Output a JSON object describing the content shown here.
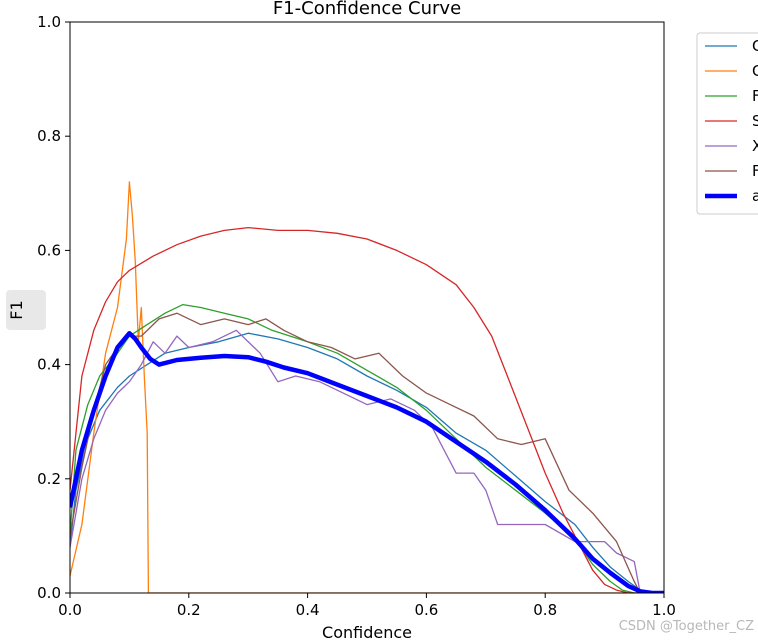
{
  "watermark": "CSDN @Together_CZ",
  "chart_data": {
    "type": "line",
    "title": "F1-Confidence Curve",
    "xlabel": "Confidence",
    "ylabel": "F1",
    "xlim": [
      0,
      1
    ],
    "ylim": [
      0,
      1
    ],
    "xticks": [
      "0.0",
      "0.2",
      "0.4",
      "0.6",
      "0.8",
      "1.0"
    ],
    "yticks": [
      "0.0",
      "0.2",
      "0.4",
      "0.6",
      "0.8",
      "1.0"
    ],
    "grid": false,
    "legend_position": "outside-top-right",
    "series": [
      {
        "name": "C",
        "color": "#1f77b4",
        "width": 1.3,
        "points": [
          [
            0.0,
            0.08
          ],
          [
            0.01,
            0.18
          ],
          [
            0.03,
            0.27
          ],
          [
            0.05,
            0.32
          ],
          [
            0.08,
            0.36
          ],
          [
            0.1,
            0.38
          ],
          [
            0.13,
            0.4
          ],
          [
            0.16,
            0.42
          ],
          [
            0.2,
            0.43
          ],
          [
            0.25,
            0.44
          ],
          [
            0.3,
            0.455
          ],
          [
            0.35,
            0.445
          ],
          [
            0.4,
            0.43
          ],
          [
            0.45,
            0.41
          ],
          [
            0.5,
            0.38
          ],
          [
            0.55,
            0.355
          ],
          [
            0.6,
            0.325
          ],
          [
            0.65,
            0.28
          ],
          [
            0.7,
            0.25
          ],
          [
            0.75,
            0.205
          ],
          [
            0.8,
            0.16
          ],
          [
            0.85,
            0.12
          ],
          [
            0.88,
            0.08
          ],
          [
            0.91,
            0.045
          ],
          [
            0.94,
            0.02
          ],
          [
            0.96,
            0.005
          ],
          [
            0.98,
            0.0
          ],
          [
            1.0,
            0.0
          ]
        ]
      },
      {
        "name": "C",
        "color": "#ff7f0e",
        "width": 1.3,
        "points": [
          [
            0.0,
            0.03
          ],
          [
            0.02,
            0.12
          ],
          [
            0.04,
            0.28
          ],
          [
            0.06,
            0.42
          ],
          [
            0.08,
            0.5
          ],
          [
            0.095,
            0.62
          ],
          [
            0.1,
            0.72
          ],
          [
            0.105,
            0.66
          ],
          [
            0.11,
            0.58
          ],
          [
            0.115,
            0.44
          ],
          [
            0.12,
            0.5
          ],
          [
            0.125,
            0.38
          ],
          [
            0.13,
            0.28
          ],
          [
            0.132,
            0.0
          ],
          [
            1.0,
            0.0
          ]
        ]
      },
      {
        "name": "F",
        "color": "#2ca02c",
        "width": 1.3,
        "points": [
          [
            0.0,
            0.1
          ],
          [
            0.01,
            0.25
          ],
          [
            0.03,
            0.33
          ],
          [
            0.05,
            0.38
          ],
          [
            0.08,
            0.42
          ],
          [
            0.1,
            0.45
          ],
          [
            0.13,
            0.47
          ],
          [
            0.16,
            0.49
          ],
          [
            0.19,
            0.505
          ],
          [
            0.22,
            0.5
          ],
          [
            0.26,
            0.49
          ],
          [
            0.3,
            0.48
          ],
          [
            0.34,
            0.46
          ],
          [
            0.4,
            0.44
          ],
          [
            0.45,
            0.42
          ],
          [
            0.5,
            0.39
          ],
          [
            0.55,
            0.36
          ],
          [
            0.6,
            0.32
          ],
          [
            0.65,
            0.27
          ],
          [
            0.7,
            0.22
          ],
          [
            0.75,
            0.18
          ],
          [
            0.8,
            0.14
          ],
          [
            0.85,
            0.095
          ],
          [
            0.88,
            0.05
          ],
          [
            0.91,
            0.02
          ],
          [
            0.93,
            0.005
          ],
          [
            0.95,
            0.0
          ],
          [
            1.0,
            0.0
          ]
        ]
      },
      {
        "name": "S",
        "color": "#d62728",
        "width": 1.3,
        "points": [
          [
            0.0,
            0.18
          ],
          [
            0.02,
            0.38
          ],
          [
            0.04,
            0.46
          ],
          [
            0.06,
            0.51
          ],
          [
            0.08,
            0.545
          ],
          [
            0.1,
            0.565
          ],
          [
            0.14,
            0.59
          ],
          [
            0.18,
            0.61
          ],
          [
            0.22,
            0.625
          ],
          [
            0.26,
            0.635
          ],
          [
            0.3,
            0.64
          ],
          [
            0.35,
            0.635
          ],
          [
            0.4,
            0.635
          ],
          [
            0.45,
            0.63
          ],
          [
            0.5,
            0.62
          ],
          [
            0.55,
            0.6
          ],
          [
            0.6,
            0.575
          ],
          [
            0.65,
            0.54
          ],
          [
            0.68,
            0.5
          ],
          [
            0.71,
            0.45
          ],
          [
            0.74,
            0.37
          ],
          [
            0.77,
            0.29
          ],
          [
            0.8,
            0.21
          ],
          [
            0.83,
            0.14
          ],
          [
            0.86,
            0.08
          ],
          [
            0.88,
            0.04
          ],
          [
            0.9,
            0.015
          ],
          [
            0.92,
            0.005
          ],
          [
            0.94,
            0.0
          ],
          [
            1.0,
            0.0
          ]
        ]
      },
      {
        "name": "X",
        "color": "#9467bd",
        "width": 1.3,
        "points": [
          [
            0.0,
            0.08
          ],
          [
            0.02,
            0.2
          ],
          [
            0.04,
            0.27
          ],
          [
            0.06,
            0.32
          ],
          [
            0.08,
            0.35
          ],
          [
            0.1,
            0.37
          ],
          [
            0.12,
            0.4
          ],
          [
            0.14,
            0.44
          ],
          [
            0.16,
            0.42
          ],
          [
            0.18,
            0.45
          ],
          [
            0.2,
            0.43
          ],
          [
            0.24,
            0.44
          ],
          [
            0.28,
            0.46
          ],
          [
            0.32,
            0.42
          ],
          [
            0.35,
            0.37
          ],
          [
            0.38,
            0.38
          ],
          [
            0.42,
            0.37
          ],
          [
            0.46,
            0.35
          ],
          [
            0.5,
            0.33
          ],
          [
            0.54,
            0.34
          ],
          [
            0.58,
            0.32
          ],
          [
            0.61,
            0.29
          ],
          [
            0.63,
            0.25
          ],
          [
            0.65,
            0.21
          ],
          [
            0.68,
            0.21
          ],
          [
            0.7,
            0.18
          ],
          [
            0.72,
            0.12
          ],
          [
            0.75,
            0.12
          ],
          [
            0.8,
            0.12
          ],
          [
            0.85,
            0.09
          ],
          [
            0.9,
            0.09
          ],
          [
            0.92,
            0.07
          ],
          [
            0.95,
            0.055
          ],
          [
            0.96,
            0.0
          ],
          [
            1.0,
            0.0
          ]
        ]
      },
      {
        "name": "F",
        "color": "#8c564b",
        "width": 1.3,
        "points": [
          [
            0.0,
            0.1
          ],
          [
            0.02,
            0.22
          ],
          [
            0.04,
            0.32
          ],
          [
            0.06,
            0.4
          ],
          [
            0.08,
            0.43
          ],
          [
            0.1,
            0.45
          ],
          [
            0.12,
            0.45
          ],
          [
            0.15,
            0.48
          ],
          [
            0.18,
            0.49
          ],
          [
            0.22,
            0.47
          ],
          [
            0.26,
            0.48
          ],
          [
            0.3,
            0.47
          ],
          [
            0.33,
            0.48
          ],
          [
            0.36,
            0.46
          ],
          [
            0.4,
            0.44
          ],
          [
            0.44,
            0.43
          ],
          [
            0.48,
            0.41
          ],
          [
            0.52,
            0.42
          ],
          [
            0.56,
            0.38
          ],
          [
            0.6,
            0.35
          ],
          [
            0.64,
            0.33
          ],
          [
            0.68,
            0.31
          ],
          [
            0.72,
            0.27
          ],
          [
            0.76,
            0.26
          ],
          [
            0.8,
            0.27
          ],
          [
            0.84,
            0.18
          ],
          [
            0.88,
            0.14
          ],
          [
            0.92,
            0.09
          ],
          [
            0.95,
            0.02
          ],
          [
            0.96,
            0.0
          ],
          [
            1.0,
            0.0
          ]
        ]
      },
      {
        "name": "a",
        "color": "#0000ff",
        "width": 4.5,
        "points": [
          [
            0.0,
            0.15
          ],
          [
            0.01,
            0.2
          ],
          [
            0.02,
            0.25
          ],
          [
            0.04,
            0.32
          ],
          [
            0.06,
            0.38
          ],
          [
            0.08,
            0.43
          ],
          [
            0.1,
            0.455
          ],
          [
            0.11,
            0.445
          ],
          [
            0.12,
            0.43
          ],
          [
            0.135,
            0.41
          ],
          [
            0.15,
            0.4
          ],
          [
            0.18,
            0.408
          ],
          [
            0.22,
            0.412
          ],
          [
            0.26,
            0.415
          ],
          [
            0.3,
            0.413
          ],
          [
            0.33,
            0.405
          ],
          [
            0.36,
            0.395
          ],
          [
            0.4,
            0.385
          ],
          [
            0.45,
            0.365
          ],
          [
            0.5,
            0.345
          ],
          [
            0.55,
            0.325
          ],
          [
            0.6,
            0.3
          ],
          [
            0.65,
            0.265
          ],
          [
            0.7,
            0.23
          ],
          [
            0.75,
            0.19
          ],
          [
            0.8,
            0.145
          ],
          [
            0.85,
            0.095
          ],
          [
            0.88,
            0.06
          ],
          [
            0.91,
            0.035
          ],
          [
            0.94,
            0.012
          ],
          [
            0.96,
            0.003
          ],
          [
            0.98,
            0.0
          ],
          [
            1.0,
            0.0
          ]
        ]
      }
    ]
  }
}
